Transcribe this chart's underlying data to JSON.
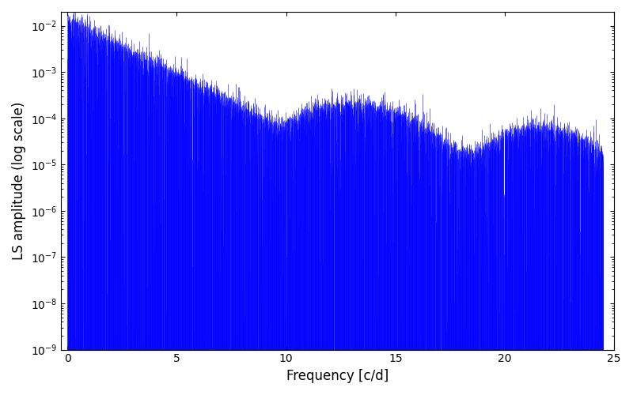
{
  "xlabel": "Frequency [c/d]",
  "ylabel": "LS amplitude (log scale)",
  "line_color": "#0000ff",
  "xlim": [
    -0.3,
    25
  ],
  "ylim_log_min": -9,
  "ylim_log_max": -1.7,
  "freq_max": 24.5,
  "n_points": 3000,
  "seed": 42,
  "figsize": [
    8.0,
    5.0
  ],
  "dpi": 100
}
